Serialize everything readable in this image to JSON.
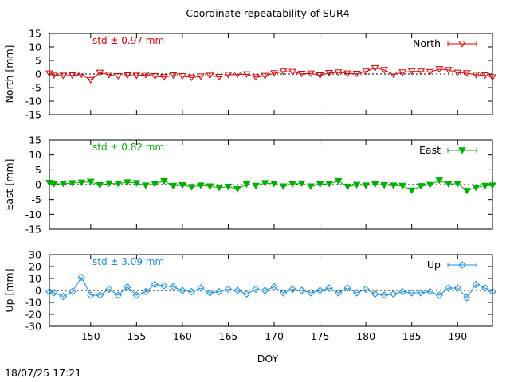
{
  "title": "Coordinate repeatability of SUR4",
  "timestamp": "18/07/25 17:21",
  "chart_data": {
    "type": "line",
    "title": "Coordinate repeatability of SUR4",
    "xlabel": "DOY",
    "xlim": [
      145.5,
      193.8
    ],
    "xticks": [
      150,
      155,
      160,
      165,
      170,
      175,
      180,
      185,
      190
    ],
    "panels": [
      {
        "key": "north",
        "ylabel": "North [mm]",
        "ylim": [
          -15,
          15
        ],
        "yticks": [
          -15,
          -10,
          -5,
          0,
          5,
          10,
          15
        ],
        "legend": "North",
        "std_label": "std ± 0.97 mm",
        "color": "#e00000",
        "marker": "triangle-down-open",
        "x": [
          145.5,
          146,
          147,
          148,
          149,
          150,
          151,
          152,
          153,
          154,
          155,
          156,
          157,
          158,
          159,
          160,
          161,
          162,
          163,
          164,
          165,
          166,
          167,
          168,
          169,
          170,
          171,
          172,
          173,
          174,
          175,
          176,
          177,
          178,
          179,
          180,
          181,
          182,
          183,
          184,
          185,
          186,
          187,
          188,
          189,
          190,
          191,
          192,
          193,
          193.8
        ],
        "values": [
          0.2,
          -0.4,
          -0.6,
          -0.5,
          -0.2,
          -2.2,
          0.5,
          -0.3,
          -0.8,
          -0.5,
          -0.6,
          -0.3,
          -0.8,
          -1.2,
          -0.5,
          -0.8,
          -1.3,
          -0.9,
          -0.6,
          -1.1,
          -0.3,
          -0.2,
          -0.1,
          -1.2,
          -0.7,
          0.3,
          0.9,
          0.8,
          0.1,
          0.2,
          -0.5,
          0.4,
          0.6,
          0.2,
          0.1,
          0.9,
          2.2,
          1.5,
          -0.2,
          0.6,
          1.0,
          0.9,
          0.7,
          1.8,
          1.5,
          0.5,
          0.3,
          -0.3,
          -0.5,
          -1.2
        ]
      },
      {
        "key": "east",
        "ylabel": "East [mm]",
        "ylim": [
          -15,
          15
        ],
        "yticks": [
          -15,
          -10,
          -5,
          0,
          5,
          10,
          15
        ],
        "legend": "East",
        "std_label": "std ± 0.82 mm",
        "color": "#00b000",
        "marker": "triangle-down-filled",
        "x": [
          145.5,
          146,
          147,
          148,
          149,
          150,
          151,
          152,
          153,
          154,
          155,
          156,
          157,
          158,
          159,
          160,
          161,
          162,
          163,
          164,
          165,
          166,
          167,
          168,
          169,
          170,
          171,
          172,
          173,
          174,
          175,
          176,
          177,
          178,
          179,
          180,
          181,
          182,
          183,
          184,
          185,
          186,
          187,
          188,
          189,
          190,
          191,
          192,
          193,
          193.8
        ],
        "values": [
          0.6,
          0.2,
          0.3,
          0.5,
          0.7,
          1.0,
          -0.2,
          0.4,
          0.3,
          0.8,
          0.5,
          -0.3,
          0.2,
          1.2,
          -0.4,
          -0.2,
          -0.8,
          -0.3,
          -0.6,
          -1.0,
          -0.7,
          -1.5,
          0.1,
          -0.4,
          0.5,
          0.3,
          -0.6,
          0.2,
          0.4,
          -0.6,
          0.1,
          0.3,
          1.2,
          -0.7,
          -0.1,
          -0.3,
          0.1,
          -0.2,
          -0.3,
          -0.4,
          -2.0,
          -0.5,
          -0.1,
          1.4,
          0.2,
          0.3,
          -2.1,
          -1.0,
          -0.4,
          -0.3
        ]
      },
      {
        "key": "up",
        "ylabel": "Up [mm]",
        "ylim": [
          -30,
          30
        ],
        "yticks": [
          -30,
          -20,
          -10,
          0,
          10,
          20,
          30
        ],
        "legend": "Up",
        "std_label": "std ± 3.09 mm",
        "color": "#1a8ee0",
        "marker": "diamond-open",
        "x": [
          145.5,
          146,
          147,
          148,
          149,
          150,
          151,
          152,
          153,
          154,
          155,
          156,
          157,
          158,
          159,
          160,
          161,
          162,
          163,
          164,
          165,
          166,
          167,
          168,
          169,
          170,
          171,
          172,
          173,
          174,
          175,
          176,
          177,
          178,
          179,
          180,
          181,
          182,
          183,
          184,
          185,
          186,
          187,
          188,
          189,
          190,
          191,
          192,
          193,
          193.8
        ],
        "values": [
          -1,
          -2,
          -5,
          -1,
          11,
          -4,
          -4,
          1,
          -4,
          3,
          -4,
          -1,
          5,
          4,
          3,
          0,
          -1,
          2,
          -2,
          -1,
          1,
          0,
          -3,
          1,
          0,
          3,
          -2,
          1,
          0,
          -2,
          0,
          2,
          -2,
          2,
          -2,
          1,
          -3,
          -4,
          -3,
          -1,
          -2,
          -2,
          -1,
          -4,
          2,
          2,
          -6,
          5,
          2,
          -1
        ]
      }
    ]
  }
}
